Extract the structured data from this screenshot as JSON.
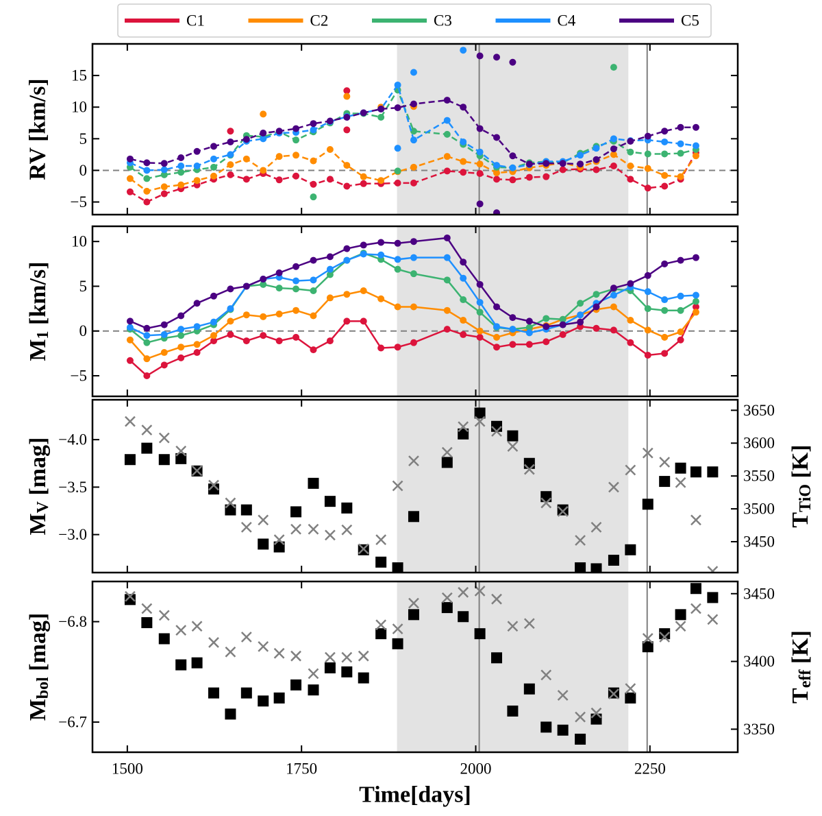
{
  "chart_data": [
    {
      "type": "line",
      "legend": "top",
      "linestyle": "dashed",
      "ylabel": "RV [km/s]",
      "xlim": [
        1450,
        2376
      ],
      "xticks": [
        1500,
        1750,
        2000,
        2250
      ],
      "ylim": [
        -7,
        20
      ],
      "yticks": [
        {
          "value": -5,
          "label": "−5"
        },
        0,
        5,
        10,
        15
      ],
      "hline": 0,
      "shaded_span": [
        1887,
        2219
      ],
      "vlines": [
        2005,
        2246
      ],
      "x": [
        1504,
        1528,
        1553,
        1577,
        1600,
        1624,
        1648,
        1671,
        1695,
        1718,
        1742,
        1767,
        1791,
        1815,
        1839,
        1864,
        1888,
        1911,
        1959,
        1982,
        2006,
        2030,
        2053,
        2077,
        2101,
        2125,
        2150,
        2173,
        2198,
        2222,
        2247,
        2271,
        2294,
        2316
      ],
      "series": [
        {
          "name": "C1",
          "color": "#dc143c",
          "values": [
            -3.4,
            -5.0,
            -3.7,
            -2.9,
            -2.3,
            -1.4,
            -0.7,
            -1.4,
            -0.5,
            -1.5,
            -0.9,
            -2.2,
            -1.4,
            -2.5,
            -2.1,
            -2.1,
            -2.0,
            -2.0,
            -0.1,
            -0.3,
            -0.5,
            -1.4,
            -1.5,
            -1.1,
            -1.0,
            0.1,
            0.2,
            0.1,
            0.7,
            -1.4,
            -2.8,
            -2.5,
            -1.4,
            2.8
          ],
          "extra": {
            "x": [
              1648,
              1815,
              1815
            ],
            "values": [
              6.2,
              12.6,
              6.4
            ]
          }
        },
        {
          "name": "C2",
          "color": "#ff8c00",
          "values": [
            -1.3,
            -3.3,
            -2.6,
            -2.3,
            -1.6,
            -0.9,
            0.9,
            1.8,
            0.0,
            2.2,
            2.4,
            1.5,
            3.3,
            0.8,
            -1.0,
            -1.6,
            -0.2,
            0.5,
            2.2,
            1.4,
            1.0,
            -0.4,
            -0.2,
            0.4,
            0.8,
            1.2,
            0.5,
            1.4,
            2.5,
            0.7,
            0.3,
            -0.8,
            -1.0,
            2.3
          ],
          "extra": {
            "x": [
              1695,
              1815,
              1864,
              1911
            ],
            "values": [
              8.9,
              11.7,
              10.0,
              10.1
            ]
          }
        },
        {
          "name": "C3",
          "color": "#3cb371",
          "values": [
            0.5,
            -1.3,
            -0.7,
            -0.3,
            0.1,
            0.5,
            2.4,
            5.5,
            5.3,
            6.1,
            4.8,
            6.1,
            7.5,
            9.0,
            9.0,
            8.4,
            12.7,
            6.2,
            5.7,
            4.1,
            2.3,
            0.5,
            0.4,
            1.2,
            1.4,
            1.2,
            2.7,
            3.8,
            4.6,
            2.9,
            2.6,
            2.6,
            2.7,
            3.3
          ],
          "extra": {
            "x": [
              1767,
              1888,
              2198
            ],
            "values": [
              -4.2,
              -0.1,
              16.3
            ]
          }
        },
        {
          "name": "C4",
          "color": "#1e90ff",
          "values": [
            1.2,
            0.0,
            0.1,
            0.7,
            0.7,
            1.8,
            2.5,
            4.6,
            5.0,
            5.9,
            6.0,
            6.4,
            7.7,
            8.5,
            9.1,
            9.7,
            13.5,
            4.8,
            7.9,
            4.5,
            2.9,
            0.8,
            0.4,
            0.9,
            1.4,
            1.4,
            2.4,
            3.5,
            5.0,
            4.7,
            4.8,
            4.5,
            4.2,
            3.9
          ],
          "extra": {
            "x": [
              1888,
              1911,
              1982
            ],
            "values": [
              3.5,
              15.5,
              19.0
            ]
          }
        },
        {
          "name": "C5",
          "color": "#4b0082",
          "values": [
            1.8,
            1.2,
            1.1,
            2.0,
            3.0,
            3.8,
            4.5,
            4.9,
            5.9,
            6.2,
            6.6,
            7.4,
            7.8,
            8.4,
            9.1,
            9.7,
            9.9,
            10.5,
            11.1,
            10.0,
            6.6,
            5.2,
            2.3,
            1.0,
            1.1,
            1.1,
            1.0,
            1.7,
            3.4,
            4.6,
            5.4,
            6.2,
            6.8,
            6.8
          ],
          "extra": {
            "x": [
              2006,
              2030,
              2053,
              2006,
              2030
            ],
            "values": [
              18.1,
              17.9,
              17.1,
              -5.3,
              -6.7
            ]
          }
        }
      ]
    },
    {
      "type": "line",
      "ylabel": {
        "base": "M",
        "sub": "1",
        "rest": " [km/s]"
      },
      "xlim": [
        1450,
        2376
      ],
      "xticks": [
        1500,
        1750,
        2000,
        2250
      ],
      "ylim": [
        -7.3,
        11.7
      ],
      "yticks": [
        {
          "value": -5,
          "label": "−5"
        },
        0,
        5,
        10
      ],
      "hline": 0,
      "shaded_span": [
        1887,
        2219
      ],
      "vlines": [
        2005,
        2246
      ],
      "x": [
        1504,
        1528,
        1553,
        1577,
        1600,
        1624,
        1648,
        1671,
        1695,
        1718,
        1742,
        1767,
        1791,
        1815,
        1839,
        1864,
        1888,
        1911,
        1959,
        1982,
        2006,
        2030,
        2053,
        2077,
        2101,
        2125,
        2150,
        2173,
        2198,
        2222,
        2247,
        2271,
        2294,
        2316
      ],
      "series": [
        {
          "color": "#dc143c",
          "values": [
            -3.3,
            -5.0,
            -3.8,
            -3.0,
            -2.4,
            -1.1,
            -0.4,
            -1.1,
            -0.5,
            -1.1,
            -0.7,
            -2.1,
            -1.1,
            1.1,
            1.1,
            -1.9,
            -1.8,
            -1.3,
            0.2,
            -0.4,
            -0.7,
            -1.8,
            -1.5,
            -1.5,
            -1.2,
            -0.4,
            0.5,
            0.3,
            0.1,
            -1.3,
            -2.7,
            -2.5,
            -1.0,
            2.7
          ]
        },
        {
          "color": "#ff8c00",
          "values": [
            -1.0,
            -3.1,
            -2.4,
            -1.8,
            -1.5,
            -0.5,
            1.1,
            1.8,
            1.6,
            1.9,
            2.3,
            1.7,
            3.7,
            4.1,
            4.5,
            3.6,
            2.7,
            2.7,
            2.3,
            1.2,
            0.0,
            -0.7,
            -0.2,
            0.2,
            0.6,
            1.3,
            1.8,
            2.4,
            2.7,
            1.2,
            0.1,
            -0.7,
            -0.1,
            2.1
          ]
        },
        {
          "color": "#3cb371",
          "values": [
            0.2,
            -1.3,
            -0.8,
            -0.5,
            0.0,
            0.7,
            2.4,
            5.0,
            5.2,
            4.8,
            4.7,
            4.5,
            6.3,
            7.9,
            8.7,
            8.0,
            6.9,
            6.4,
            5.7,
            3.5,
            2.1,
            0.4,
            0.2,
            0.4,
            1.4,
            1.3,
            3.1,
            4.1,
            4.7,
            4.5,
            2.5,
            2.3,
            2.3,
            3.3
          ]
        },
        {
          "color": "#1e90ff",
          "values": [
            0.4,
            -0.5,
            -0.4,
            0.2,
            0.5,
            1.0,
            2.5,
            5.0,
            5.8,
            6.0,
            5.6,
            5.7,
            6.9,
            7.9,
            8.6,
            8.5,
            8.0,
            8.2,
            8.2,
            5.9,
            3.2,
            0.5,
            0.2,
            -0.2,
            0.2,
            0.7,
            1.8,
            3.1,
            4.0,
            4.9,
            4.4,
            3.5,
            3.9,
            4.0
          ]
        },
        {
          "color": "#4b0082",
          "values": [
            1.1,
            0.3,
            0.7,
            1.7,
            3.1,
            3.9,
            4.7,
            5.0,
            5.8,
            6.5,
            7.2,
            7.9,
            8.3,
            9.2,
            9.6,
            9.9,
            9.8,
            10.0,
            10.4,
            7.7,
            5.2,
            2.7,
            1.5,
            1.1,
            0.5,
            0.7,
            1.0,
            2.7,
            4.8,
            5.3,
            6.2,
            7.5,
            7.9,
            8.2
          ]
        }
      ]
    },
    {
      "type": "scatter",
      "ylabel": {
        "base": "M",
        "sub": "V",
        "rest": " [mag]"
      },
      "y2label": {
        "base": "T",
        "sub": "TiO",
        "rest": " [K]"
      },
      "xlim": [
        1450,
        2376
      ],
      "xticks": [
        1500,
        1750,
        2000,
        2250
      ],
      "ylim": [
        -2.6,
        -4.42
      ],
      "yticks": [
        {
          "value": -4,
          "label": "−4.0"
        },
        {
          "value": -3.5,
          "label": "−3.5"
        },
        {
          "value": -3,
          "label": "−3.0"
        }
      ],
      "y2lim": [
        3403,
        3666
      ],
      "y2ticks": [
        3450,
        3500,
        3550,
        3600,
        3650
      ],
      "shaded_span": [
        1887,
        2219
      ],
      "vlines": [
        2005,
        2246
      ],
      "x": [
        1504,
        1528,
        1553,
        1577,
        1600,
        1624,
        1648,
        1671,
        1695,
        1718,
        1742,
        1767,
        1791,
        1815,
        1839,
        1864,
        1888,
        1911,
        1959,
        1982,
        2006,
        2030,
        2053,
        2077,
        2101,
        2125,
        2150,
        2173,
        2198,
        2222,
        2247,
        2271,
        2294,
        2316,
        2340
      ],
      "series": [
        {
          "marker": "square",
          "color": "#000000",
          "values": [
            -3.79,
            -3.91,
            -3.79,
            -3.8,
            -3.67,
            -3.48,
            -3.26,
            -3.26,
            -2.9,
            -2.87,
            -3.24,
            -3.54,
            -3.35,
            -3.28,
            -2.84,
            -2.71,
            -2.65,
            -3.19,
            -3.76,
            -4.06,
            -4.28,
            -4.14,
            -4.04,
            -3.75,
            -3.4,
            -3.26,
            -2.65,
            -2.64,
            -2.73,
            -2.84,
            -3.32,
            -3.56,
            -3.7,
            -3.66,
            -3.66
          ]
        },
        {
          "marker": "x",
          "color": "#808080",
          "axis": "y2",
          "values": [
            3633,
            3620,
            3608,
            3588,
            3558,
            3536,
            3509,
            3472,
            3483,
            3453,
            3469,
            3469,
            3460,
            3468,
            3439,
            3453,
            3535,
            3573,
            3586,
            3625,
            3633,
            3618,
            3595,
            3560,
            3509,
            3496,
            3452,
            3472,
            3533,
            3559,
            3585,
            3571,
            3540,
            3483,
            3405
          ]
        }
      ]
    },
    {
      "type": "scatter",
      "ylabel": {
        "base": "M",
        "sub": "bol",
        "rest": " [mag]"
      },
      "y2label": {
        "base": "T",
        "sub": "eff",
        "rest": " [K]"
      },
      "xlabel": "Time[days]",
      "xlim": [
        1450,
        2376
      ],
      "xticks": [
        1500,
        1750,
        2000,
        2250
      ],
      "ylim": [
        -6.67,
        -6.84
      ],
      "yticks": [
        {
          "value": -6.8,
          "label": "−6.8"
        },
        {
          "value": -6.7,
          "label": "−6.7"
        }
      ],
      "y2lim": [
        3333,
        3459
      ],
      "y2ticks": [
        3350,
        3400,
        3450
      ],
      "shaded_span": [
        1887,
        2219
      ],
      "vlines": [
        2005,
        2246
      ],
      "x": [
        1504,
        1528,
        1553,
        1577,
        1600,
        1624,
        1648,
        1671,
        1695,
        1718,
        1742,
        1767,
        1791,
        1815,
        1839,
        1864,
        1888,
        1911,
        1959,
        1982,
        2006,
        2030,
        2053,
        2077,
        2101,
        2125,
        2150,
        2173,
        2198,
        2222,
        2247,
        2271,
        2294,
        2316,
        2340
      ],
      "series": [
        {
          "marker": "square",
          "color": "#000000",
          "values": [
            -6.822,
            -6.799,
            -6.783,
            -6.757,
            -6.759,
            -6.729,
            -6.708,
            -6.729,
            -6.721,
            -6.724,
            -6.737,
            -6.732,
            -6.754,
            -6.75,
            -6.744,
            -6.788,
            -6.778,
            -6.807,
            -6.814,
            -6.805,
            -6.788,
            -6.764,
            -6.711,
            -6.733,
            -6.695,
            -6.692,
            -6.683,
            -6.703,
            -6.729,
            -6.724,
            -6.775,
            -6.788,
            -6.807,
            -6.833,
            -6.824
          ]
        },
        {
          "marker": "x",
          "color": "#808080",
          "axis": "y2",
          "values": [
            3448,
            3439,
            3434,
            3423,
            3426,
            3414,
            3407,
            3418,
            3411,
            3406,
            3404,
            3391,
            3403,
            3403,
            3404,
            3427,
            3424,
            3443,
            3447,
            3451,
            3452,
            3446,
            3426,
            3428,
            3390,
            3375,
            3359,
            3362,
            3376,
            3380,
            3417,
            3418,
            3426,
            3439,
            3431
          ]
        }
      ]
    }
  ]
}
